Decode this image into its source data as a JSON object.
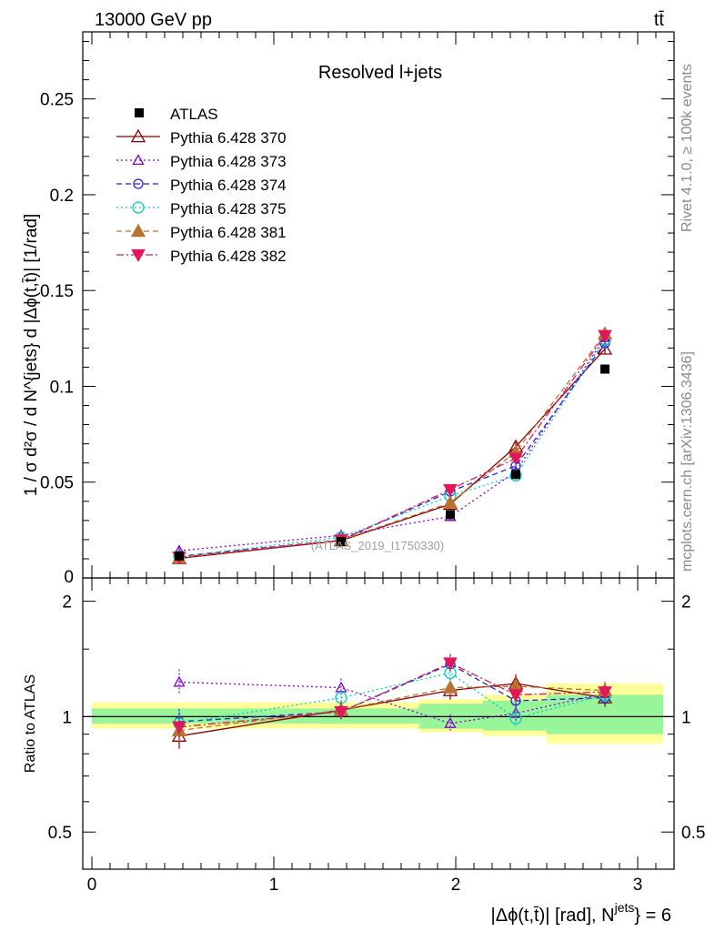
{
  "header": {
    "left": "13000 GeV pp",
    "right": "tt̄"
  },
  "side_labels": {
    "rivet": "Rivet 4.1.0, ≥ 100k events",
    "mcplots": "mcplots.cern.ch [arXiv:1306.3436]"
  },
  "chart_data": {
    "type": "scatter",
    "title": "Resolved l+jets",
    "watermark": "(ATLAS_2019_I1750330)",
    "xlabel": "|Δϕ(t,t̄)| [rad], N^{jets} = 6",
    "xlabel_main": "|Δϕ(t,t̄)| [rad], N",
    "xlabel_sup": "jets",
    "xlabel_tail": "} = 6",
    "ylabel": "1 / σ d²σ / d N^{jets} d |Δϕ(t,t̄)| [1/rad]",
    "ratio_ylabel": "Ratio to ATLAS",
    "xlim": [
      -0.05,
      3.2
    ],
    "ylim": [
      0,
      0.285
    ],
    "ratio_ylim": [
      0.4,
      2.3
    ],
    "x_ticks": [
      0,
      1,
      2,
      3
    ],
    "x_tick_labels": [
      "0",
      "1",
      "2",
      "3"
    ],
    "y_ticks": [
      0.05,
      0.1,
      0.15,
      0.2,
      0.25
    ],
    "y_tick_labels": [
      "0.05",
      "0.1",
      "0.15",
      "0.2",
      "0.25"
    ],
    "y_zero_label": "0",
    "ratio_ticks": [
      0.5,
      1,
      2
    ],
    "ratio_tick_labels": [
      "0.5",
      "1",
      "2"
    ],
    "x_edges": [
      0,
      0.95,
      1.8,
      2.15,
      2.5,
      3.14
    ],
    "x": [
      0.48,
      1.37,
      1.97,
      2.33,
      2.82
    ],
    "data": {
      "name": "ATLAS",
      "values": [
        0.0115,
        0.019,
        0.033,
        0.054,
        0.109
      ]
    },
    "ratio_bands": {
      "inner": [
        [
          0.96,
          1.05
        ],
        [
          0.96,
          1.05
        ],
        [
          0.93,
          1.08
        ],
        [
          0.92,
          1.1
        ],
        [
          0.9,
          1.14
        ]
      ],
      "outer": [
        [
          0.93,
          1.09
        ],
        [
          0.93,
          1.09
        ],
        [
          0.91,
          1.11
        ],
        [
          0.89,
          1.14
        ],
        [
          0.85,
          1.22
        ]
      ]
    },
    "series": [
      {
        "name": "Pythia 6.428 370",
        "color": "#8b0000",
        "marker": "triangle-open",
        "dash": "",
        "values": [
          0.0102,
          0.0195,
          0.0385,
          0.0685,
          0.1195
        ],
        "ratio": [
          0.89,
          1.04,
          1.17,
          1.22,
          1.12
        ]
      },
      {
        "name": "Pythia 6.428 373",
        "color": "#8a00cc",
        "marker": "triangle-open-small",
        "dash": "2,3",
        "values": [
          0.0142,
          0.0222,
          0.0321,
          0.0555,
          0.1255
        ],
        "ratio": [
          1.23,
          1.19,
          0.96,
          1.02,
          1.15
        ]
      },
      {
        "name": "Pythia 6.428 374",
        "color": "#2222dd",
        "marker": "circle-open",
        "dash": "6,4",
        "values": [
          0.0113,
          0.0198,
          0.0451,
          0.0585,
          0.1225
        ],
        "ratio": [
          0.97,
          1.03,
          1.37,
          1.1,
          1.12
        ]
      },
      {
        "name": "Pythia 6.428 375",
        "color": "#00d0c0",
        "marker": "circle-open-large",
        "dash": "2,3",
        "values": [
          0.0112,
          0.0212,
          0.0428,
          0.0535,
          0.1245
        ],
        "ratio": [
          0.96,
          1.12,
          1.3,
          0.99,
          1.14
        ]
      },
      {
        "name": "Pythia 6.428 381",
        "color": "#b87333",
        "marker": "triangle-filled",
        "dash": "6,4",
        "values": [
          0.0105,
          0.0198,
          0.0392,
          0.0658,
          0.1275
        ],
        "ratio": [
          0.92,
          1.04,
          1.19,
          1.2,
          1.17
        ]
      },
      {
        "name": "Pythia 6.428 382",
        "color": "#e0185a",
        "marker": "triangle-down-filled",
        "dash": "8,3,2,3",
        "values": [
          0.0108,
          0.0197,
          0.0461,
          0.0625,
          0.1265
        ],
        "ratio": [
          0.94,
          1.03,
          1.38,
          1.14,
          1.16
        ]
      }
    ]
  }
}
